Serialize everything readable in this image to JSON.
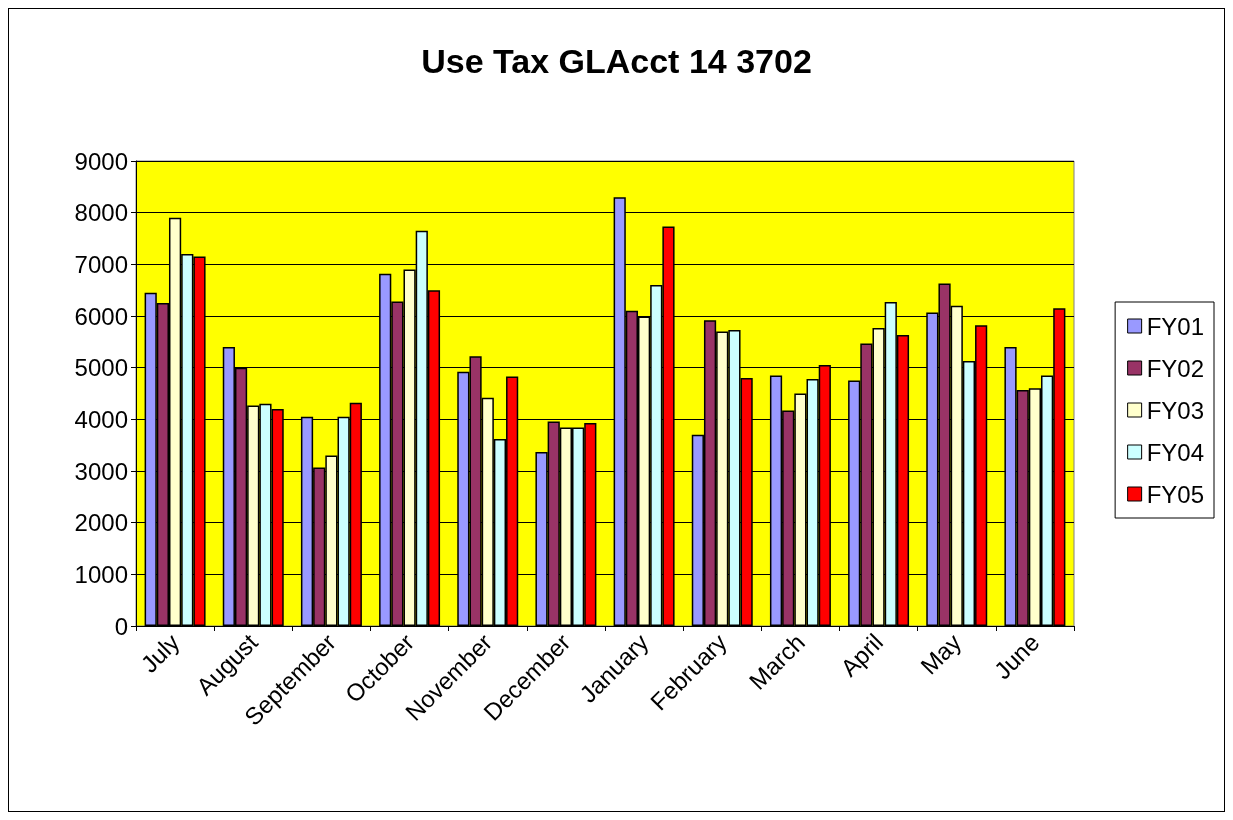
{
  "chart_data": {
    "type": "bar",
    "title": "Use Tax GLAcct 14 3702",
    "categories": [
      "July",
      "August",
      "September",
      "October",
      "November",
      "December",
      "January",
      "February",
      "March",
      "April",
      "May",
      "June"
    ],
    "series": [
      {
        "name": "FY01",
        "color": "#9999ff",
        "values": [
          6450,
          5400,
          4050,
          6820,
          4920,
          3370,
          8300,
          3700,
          4850,
          4750,
          6070,
          5400
        ]
      },
      {
        "name": "FY02",
        "color": "#993366",
        "values": [
          6250,
          5000,
          3070,
          6280,
          5220,
          3960,
          6100,
          5920,
          4170,
          5470,
          6630,
          4570
        ]
      },
      {
        "name": "FY03",
        "color": "#ffffcc",
        "values": [
          7900,
          4270,
          3300,
          6900,
          4420,
          3840,
          5990,
          5700,
          4500,
          5770,
          6200,
          4600
        ]
      },
      {
        "name": "FY04",
        "color": "#ccffff",
        "values": [
          7200,
          4300,
          4050,
          7650,
          3620,
          3840,
          6600,
          5730,
          4780,
          6270,
          5130,
          4850
        ]
      },
      {
        "name": "FY05",
        "color": "#ff0000",
        "values": [
          7150,
          4200,
          4320,
          6500,
          4830,
          3930,
          7730,
          4800,
          5050,
          5630,
          5820,
          6150
        ]
      }
    ],
    "ylim": [
      0,
      9000
    ],
    "yticks": [
      0,
      1000,
      2000,
      3000,
      4000,
      5000,
      6000,
      7000,
      8000,
      9000
    ],
    "grid": "y",
    "legend": "right"
  }
}
